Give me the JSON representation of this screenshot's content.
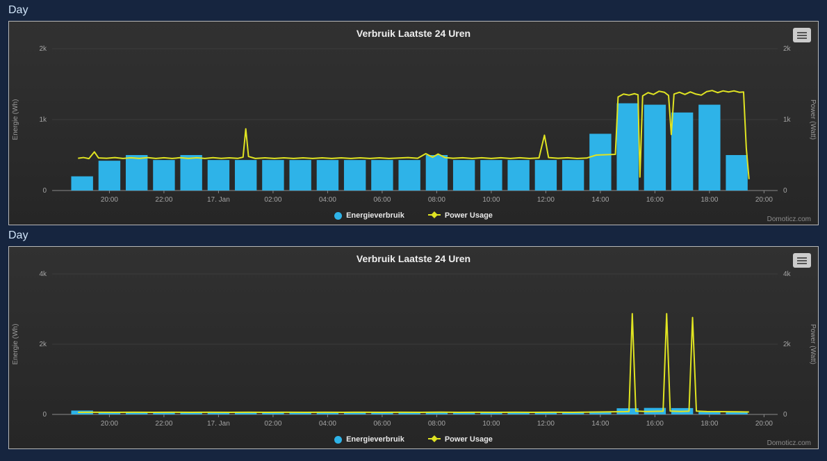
{
  "headers": [
    "Day",
    "Day"
  ],
  "watermark": "Domoticz.com",
  "colors": {
    "energy": "#2eb3e8",
    "power": "#e0e422",
    "grid": "#3d3d3d",
    "axis": "#8a8a8a"
  },
  "chart_data": [
    {
      "type": "bar",
      "title": "Verbruik Laatste 24 Uren",
      "ylabel_left": "Energie (Wh)",
      "ylabel_right": "Power (Watt)",
      "legend_position": "bottom",
      "xlim": [
        -0.1,
        26.5
      ],
      "ylim": [
        0,
        2000
      ],
      "y_ticks": [
        {
          "v": 0,
          "label": "0"
        },
        {
          "v": 1000,
          "label": "1k"
        },
        {
          "v": 2000,
          "label": "2k"
        }
      ],
      "x_ticks": [
        {
          "v": 2,
          "label": "20:00"
        },
        {
          "v": 4,
          "label": "22:00"
        },
        {
          "v": 6,
          "label": "17. Jan"
        },
        {
          "v": 8,
          "label": "02:00"
        },
        {
          "v": 10,
          "label": "04:00"
        },
        {
          "v": 12,
          "label": "06:00"
        },
        {
          "v": 14,
          "label": "08:00"
        },
        {
          "v": 16,
          "label": "10:00"
        },
        {
          "v": 18,
          "label": "12:00"
        },
        {
          "v": 20,
          "label": "14:00"
        },
        {
          "v": 22,
          "label": "16:00"
        },
        {
          "v": 24,
          "label": "18:00"
        },
        {
          "v": 26,
          "label": "20:00"
        }
      ],
      "series": [
        {
          "name": "Energieverbruik",
          "type": "bar",
          "color": "#2eb3e8",
          "x": [
            1,
            2,
            3,
            4,
            5,
            6,
            7,
            8,
            9,
            10,
            11,
            12,
            13,
            14,
            15,
            16,
            17,
            18,
            19,
            20,
            21,
            22,
            23,
            24,
            25
          ],
          "values": [
            200,
            420,
            500,
            430,
            500,
            430,
            430,
            430,
            430,
            430,
            430,
            430,
            430,
            500,
            430,
            430,
            430,
            430,
            430,
            800,
            1230,
            1210,
            1100,
            1210,
            500
          ]
        },
        {
          "name": "Power Usage",
          "type": "line",
          "color": "#e0e422",
          "points": [
            [
              0.85,
              455
            ],
            [
              1.05,
              465
            ],
            [
              1.25,
              450
            ],
            [
              1.45,
              545
            ],
            [
              1.6,
              460
            ],
            [
              1.9,
              455
            ],
            [
              2.2,
              465
            ],
            [
              2.5,
              452
            ],
            [
              2.8,
              462
            ],
            [
              3.1,
              452
            ],
            [
              3.4,
              464
            ],
            [
              3.7,
              452
            ],
            [
              4.0,
              462
            ],
            [
              4.3,
              452
            ],
            [
              4.6,
              463
            ],
            [
              4.9,
              452
            ],
            [
              5.2,
              462
            ],
            [
              5.5,
              452
            ],
            [
              5.8,
              463
            ],
            [
              6.1,
              453
            ],
            [
              6.4,
              461
            ],
            [
              6.7,
              453
            ],
            [
              6.9,
              470
            ],
            [
              7.0,
              870
            ],
            [
              7.1,
              480
            ],
            [
              7.35,
              452
            ],
            [
              7.7,
              461
            ],
            [
              8.05,
              452
            ],
            [
              8.4,
              461
            ],
            [
              8.75,
              452
            ],
            [
              9.1,
              461
            ],
            [
              9.45,
              452
            ],
            [
              9.8,
              461
            ],
            [
              10.15,
              452
            ],
            [
              10.5,
              461
            ],
            [
              10.85,
              452
            ],
            [
              11.2,
              461
            ],
            [
              11.55,
              452
            ],
            [
              11.9,
              461
            ],
            [
              12.25,
              452
            ],
            [
              12.6,
              458
            ],
            [
              12.95,
              465
            ],
            [
              13.3,
              455
            ],
            [
              13.6,
              520
            ],
            [
              13.85,
              470
            ],
            [
              14.05,
              515
            ],
            [
              14.3,
              465
            ],
            [
              14.6,
              455
            ],
            [
              14.95,
              462
            ],
            [
              15.3,
              452
            ],
            [
              15.65,
              462
            ],
            [
              16.0,
              452
            ],
            [
              16.35,
              462
            ],
            [
              16.7,
              452
            ],
            [
              17.05,
              462
            ],
            [
              17.4,
              452
            ],
            [
              17.75,
              460
            ],
            [
              17.95,
              780
            ],
            [
              18.1,
              465
            ],
            [
              18.45,
              455
            ],
            [
              18.8,
              462
            ],
            [
              19.15,
              452
            ],
            [
              19.5,
              458
            ],
            [
              19.85,
              500
            ],
            [
              20.2,
              505
            ],
            [
              20.55,
              510
            ],
            [
              20.65,
              1320
            ],
            [
              20.85,
              1360
            ],
            [
              21.05,
              1345
            ],
            [
              21.25,
              1365
            ],
            [
              21.38,
              1350
            ],
            [
              21.45,
              190
            ],
            [
              21.55,
              1335
            ],
            [
              21.75,
              1380
            ],
            [
              21.95,
              1355
            ],
            [
              22.15,
              1400
            ],
            [
              22.35,
              1385
            ],
            [
              22.5,
              1340
            ],
            [
              22.6,
              790
            ],
            [
              22.7,
              1360
            ],
            [
              22.9,
              1385
            ],
            [
              23.1,
              1355
            ],
            [
              23.3,
              1390
            ],
            [
              23.5,
              1360
            ],
            [
              23.7,
              1345
            ],
            [
              23.9,
              1395
            ],
            [
              24.1,
              1410
            ],
            [
              24.3,
              1380
            ],
            [
              24.5,
              1405
            ],
            [
              24.7,
              1390
            ],
            [
              24.9,
              1405
            ],
            [
              25.1,
              1385
            ],
            [
              25.25,
              1390
            ],
            [
              25.35,
              600
            ],
            [
              25.45,
              160
            ]
          ]
        }
      ]
    },
    {
      "type": "bar",
      "title": "Verbruik Laatste 24 Uren",
      "ylabel_left": "Energie (Wh)",
      "ylabel_right": "Power (Watt)",
      "legend_position": "bottom",
      "xlim": [
        -0.1,
        26.5
      ],
      "ylim": [
        0,
        4000
      ],
      "y_ticks": [
        {
          "v": 0,
          "label": "0"
        },
        {
          "v": 2000,
          "label": "2k"
        },
        {
          "v": 4000,
          "label": "4k"
        }
      ],
      "x_ticks": [
        {
          "v": 2,
          "label": "20:00"
        },
        {
          "v": 4,
          "label": "22:00"
        },
        {
          "v": 6,
          "label": "17. Jan"
        },
        {
          "v": 8,
          "label": "02:00"
        },
        {
          "v": 10,
          "label": "04:00"
        },
        {
          "v": 12,
          "label": "06:00"
        },
        {
          "v": 14,
          "label": "08:00"
        },
        {
          "v": 16,
          "label": "10:00"
        },
        {
          "v": 18,
          "label": "12:00"
        },
        {
          "v": 20,
          "label": "14:00"
        },
        {
          "v": 22,
          "label": "16:00"
        },
        {
          "v": 24,
          "label": "18:00"
        },
        {
          "v": 26,
          "label": "20:00"
        }
      ],
      "series": [
        {
          "name": "Energieverbruik",
          "type": "bar",
          "color": "#2eb3e8",
          "x": [
            1,
            2,
            3,
            4,
            5,
            6,
            7,
            8,
            9,
            10,
            11,
            12,
            13,
            14,
            15,
            16,
            17,
            18,
            19,
            20,
            21,
            22,
            23,
            24,
            25
          ],
          "values": [
            110,
            65,
            75,
            62,
            70,
            62,
            62,
            62,
            62,
            62,
            62,
            62,
            62,
            68,
            62,
            62,
            62,
            62,
            62,
            85,
            175,
            185,
            180,
            95,
            75
          ]
        },
        {
          "name": "Power Usage",
          "type": "line",
          "color": "#e0e422",
          "points": [
            [
              0.85,
              60
            ],
            [
              1.5,
              62
            ],
            [
              2.2,
              60
            ],
            [
              2.9,
              63
            ],
            [
              3.6,
              60
            ],
            [
              4.3,
              62
            ],
            [
              5.0,
              60
            ],
            [
              5.7,
              62
            ],
            [
              6.4,
              60
            ],
            [
              7.1,
              63
            ],
            [
              7.8,
              60
            ],
            [
              8.5,
              62
            ],
            [
              9.2,
              60
            ],
            [
              9.9,
              62
            ],
            [
              10.6,
              60
            ],
            [
              11.3,
              62
            ],
            [
              12.0,
              60
            ],
            [
              12.7,
              62
            ],
            [
              13.4,
              60
            ],
            [
              14.1,
              65
            ],
            [
              14.8,
              60
            ],
            [
              15.5,
              62
            ],
            [
              16.2,
              60
            ],
            [
              16.9,
              62
            ],
            [
              17.6,
              60
            ],
            [
              18.3,
              62
            ],
            [
              19.0,
              60
            ],
            [
              19.7,
              68
            ],
            [
              20.4,
              75
            ],
            [
              20.9,
              80
            ],
            [
              21.05,
              85
            ],
            [
              21.17,
              2870
            ],
            [
              21.3,
              95
            ],
            [
              21.7,
              82
            ],
            [
              22.1,
              88
            ],
            [
              22.3,
              92
            ],
            [
              22.43,
              2870
            ],
            [
              22.56,
              95
            ],
            [
              22.95,
              85
            ],
            [
              23.25,
              92
            ],
            [
              23.38,
              2760
            ],
            [
              23.52,
              95
            ],
            [
              23.9,
              82
            ],
            [
              24.3,
              80
            ],
            [
              24.7,
              76
            ],
            [
              25.1,
              74
            ],
            [
              25.45,
              70
            ]
          ]
        }
      ]
    }
  ]
}
